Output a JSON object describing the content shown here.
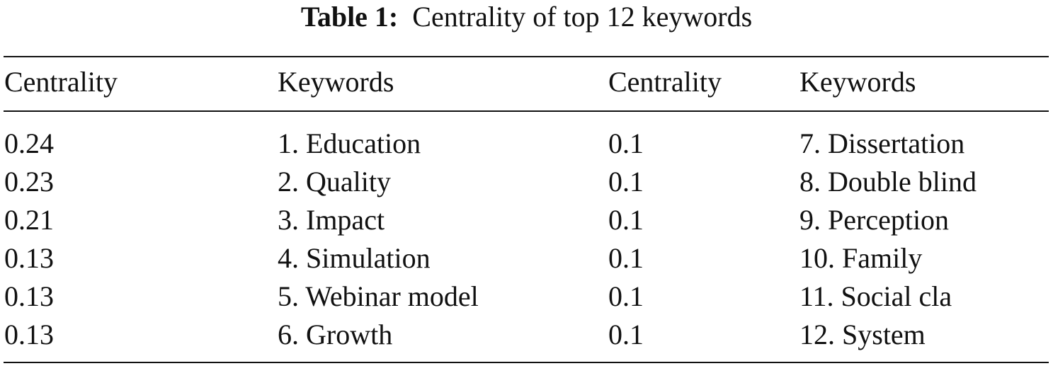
{
  "table": {
    "caption_label": "Table 1:",
    "caption_text": "Centrality of top 12 keywords",
    "headers": [
      "Centrality",
      "Keywords",
      "Centrality",
      "Keywords"
    ],
    "rows": [
      [
        "0.24",
        "1. Education",
        "0.1",
        "7. Dissertation"
      ],
      [
        "0.23",
        "2. Quality",
        "0.1",
        "8. Double blind"
      ],
      [
        "0.21",
        "3. Impact",
        "0.1",
        "9. Perception"
      ],
      [
        "0.13",
        "4. Simulation",
        "0.1",
        "10. Family"
      ],
      [
        "0.13",
        "5. Webinar model",
        "0.1",
        "11. Social cla"
      ],
      [
        "0.13",
        "6. Growth",
        "0.1",
        "12. System"
      ]
    ]
  }
}
